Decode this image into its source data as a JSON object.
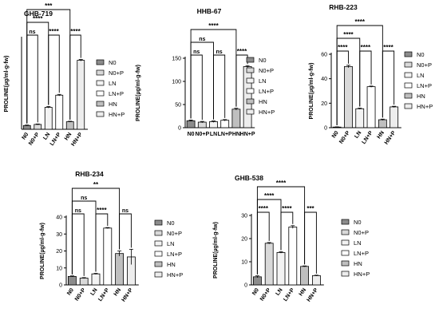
{
  "colors": {
    "N0": "#8c8c8c",
    "N0+P": "#d9d9d9",
    "LN": "#f3f3f3",
    "LN+P": "#ffffff",
    "HN": "#bfbfbf",
    "HN+P": "#ededed",
    "stroke": "#000000"
  },
  "chart_data": [
    {
      "type": "bar",
      "title": "GHB-719",
      "ylabel": "PROLINE(µg/ml-g-fw)",
      "categories": [
        "N0",
        "N0+P",
        "LN",
        "LN+P",
        "HN",
        "HN+P"
      ],
      "values": [
        2.5,
        3.2,
        14.5,
        22.5,
        5.0,
        45.5
      ],
      "errors": [
        0.3,
        0.3,
        0.5,
        0.5,
        0.3,
        0.5
      ],
      "ylim": [
        0,
        60
      ],
      "yticks": [],
      "legend": [
        "N0",
        "N0+P",
        "LN",
        "LN+P",
        "HN",
        "HN+P"
      ],
      "legend_position": "right",
      "significance": [
        {
          "from": 0,
          "to": 1,
          "label": "ns"
        },
        {
          "from": 2,
          "to": 3,
          "label": "****"
        },
        {
          "from": 4,
          "to": 5,
          "label": "****"
        },
        {
          "from": 0,
          "to": 2,
          "label": "****"
        },
        {
          "from": 0,
          "to": 4,
          "label": "***"
        }
      ]
    },
    {
      "type": "bar",
      "title": "HHB-67",
      "ylabel": "PROLINE(µg/ml-g-fw)",
      "categories": [
        "N0",
        "N0+P",
        "LN",
        "LN+P",
        "HN",
        "HN+P"
      ],
      "values": [
        15,
        12,
        13,
        16,
        40,
        132
      ],
      "errors": [
        1.5,
        1.5,
        1.5,
        1.5,
        2,
        2
      ],
      "ylim": [
        0,
        150
      ],
      "yticks": [
        "0",
        "50",
        "100",
        "150"
      ],
      "legend": [
        "N0",
        "N0+P",
        "LN",
        "LN+P",
        "HN",
        "HN+P"
      ],
      "legend_position": "right",
      "significance": [
        {
          "from": 0,
          "to": 1,
          "label": "ns"
        },
        {
          "from": 2,
          "to": 3,
          "label": "ns"
        },
        {
          "from": 4,
          "to": 5,
          "label": "****"
        },
        {
          "from": 0,
          "to": 2,
          "label": "ns"
        },
        {
          "from": 0,
          "to": 4,
          "label": "****"
        }
      ]
    },
    {
      "type": "bar",
      "title": "RHB-223",
      "ylabel": "PROLINE(µg/ml-g-fw)",
      "categories": [
        "N0",
        "N0+P",
        "LN",
        "LN+P",
        "HN",
        "HN+P"
      ],
      "values": [
        0.5,
        50,
        15.5,
        33.5,
        6.5,
        17
      ],
      "errors": [
        0.2,
        1,
        0.5,
        0.5,
        0.5,
        0.5
      ],
      "ylim": [
        0,
        60
      ],
      "yticks": [
        "0",
        "20",
        "40",
        "60"
      ],
      "legend": [
        "N0",
        "N0+P",
        "LN",
        "LN+P",
        "HN",
        "HN+P"
      ],
      "legend_position": "right",
      "significance": [
        {
          "from": 0,
          "to": 1,
          "label": "****"
        },
        {
          "from": 2,
          "to": 3,
          "label": "****"
        },
        {
          "from": 4,
          "to": 5,
          "label": "****"
        },
        {
          "from": 0,
          "to": 2,
          "label": "****"
        },
        {
          "from": 0,
          "to": 4,
          "label": "****"
        }
      ]
    },
    {
      "type": "bar",
      "title": "RHB-234",
      "ylabel": "PROLINE(µg/ml-g-fw)",
      "categories": [
        "N0",
        "N0+P",
        "LN",
        "LN+P",
        "HN",
        "HN+P"
      ],
      "values": [
        5,
        4,
        6.5,
        33.5,
        18.5,
        16.5
      ],
      "errors": [
        0.3,
        0.3,
        0.3,
        0.3,
        1.5,
        4.5
      ],
      "ylim": [
        0,
        40
      ],
      "yticks": [
        "0",
        "10",
        "20",
        "30",
        "40"
      ],
      "legend": [
        "N0",
        "N0+P",
        "LN",
        "LN+P",
        "HN",
        "HN+P"
      ],
      "legend_position": "right",
      "significance": [
        {
          "from": 0,
          "to": 1,
          "label": "ns"
        },
        {
          "from": 2,
          "to": 3,
          "label": "****"
        },
        {
          "from": 4,
          "to": 5,
          "label": "ns"
        },
        {
          "from": 0,
          "to": 2,
          "label": "ns"
        },
        {
          "from": 0,
          "to": 4,
          "label": "**"
        }
      ]
    },
    {
      "type": "bar",
      "title": "GHB-538",
      "ylabel": "PROLINE(µg/ml-g-fw)",
      "categories": [
        "N0",
        "N0+P",
        "LN",
        "LN+P",
        "HN",
        "HN+P"
      ],
      "values": [
        3.5,
        18,
        14,
        25,
        8,
        4
      ],
      "errors": [
        0.4,
        0.3,
        0.3,
        0.6,
        0.2,
        0.2
      ],
      "ylim": [
        0,
        30
      ],
      "yticks": [
        "0",
        "10",
        "20",
        "30"
      ],
      "legend": [
        "N0",
        "N0+P",
        "LN",
        "LN+P",
        "HN",
        "HN+P"
      ],
      "legend_position": "right",
      "significance": [
        {
          "from": 0,
          "to": 1,
          "label": "****"
        },
        {
          "from": 2,
          "to": 3,
          "label": "****"
        },
        {
          "from": 4,
          "to": 5,
          "label": "***"
        },
        {
          "from": 0,
          "to": 2,
          "label": "****"
        },
        {
          "from": 0,
          "to": 4,
          "label": "****"
        }
      ]
    }
  ]
}
